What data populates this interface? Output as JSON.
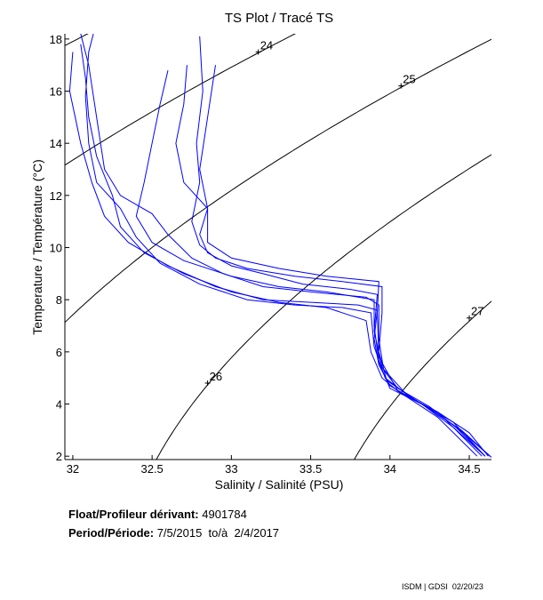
{
  "chart_data": {
    "type": "line",
    "title": "TS Plot / Tracé TS",
    "xlabel": "Salinity / Salinité (PSU)",
    "ylabel": "Temperature / Température (°C)",
    "xlim": [
      31.95,
      34.64
    ],
    "ylim": [
      1.87,
      18.2
    ],
    "xticks": [
      "32",
      "32.5",
      "33",
      "33.5",
      "34",
      "34.5"
    ],
    "xtick_values": [
      32,
      32.5,
      33,
      33.5,
      34,
      34.5
    ],
    "yticks": [
      "2",
      "4",
      "6",
      "8",
      "10",
      "12",
      "14",
      "16",
      "18"
    ],
    "ytick_values": [
      2,
      4,
      6,
      8,
      10,
      12,
      14,
      16,
      18
    ],
    "grid": false,
    "series_color": "#0000ff",
    "contour_color": "#000000",
    "density_contours": [
      {
        "sigma": 23,
        "label": ""
      },
      {
        "sigma": 24,
        "label": "24",
        "label_at": [
          33.17,
          17.5
        ]
      },
      {
        "sigma": 25,
        "label": "25",
        "label_at": [
          34.07,
          16.2
        ]
      },
      {
        "sigma": 26,
        "label": "26",
        "label_at": [
          32.85,
          4.8
        ]
      },
      {
        "sigma": 27,
        "label": "27",
        "label_at": [
          34.5,
          7.3
        ]
      }
    ],
    "profiles": [
      [
        [
          34.65,
          1.9
        ],
        [
          34.45,
          3.0
        ],
        [
          34.2,
          4.0
        ],
        [
          34.0,
          4.7
        ],
        [
          33.93,
          5.5
        ],
        [
          33.9,
          6.5
        ],
        [
          33.92,
          7.6
        ],
        [
          33.8,
          7.8
        ],
        [
          33.5,
          7.9
        ],
        [
          33.2,
          8.0
        ],
        [
          32.9,
          8.5
        ],
        [
          32.6,
          9.3
        ],
        [
          32.35,
          10.2
        ],
        [
          32.2,
          11.2
        ],
        [
          32.12,
          12.5
        ],
        [
          32.05,
          14
        ],
        [
          31.98,
          16
        ],
        [
          32.0,
          17.5
        ]
      ],
      [
        [
          34.6,
          2.0
        ],
        [
          34.4,
          3.2
        ],
        [
          34.15,
          4.2
        ],
        [
          33.98,
          4.9
        ],
        [
          33.93,
          6
        ],
        [
          33.95,
          7.5
        ],
        [
          33.95,
          8.5
        ],
        [
          33.7,
          8.7
        ],
        [
          33.4,
          8.9
        ],
        [
          33.1,
          9.2
        ],
        [
          32.9,
          9.6
        ],
        [
          32.8,
          10.1
        ],
        [
          32.75,
          11
        ],
        [
          32.8,
          12.5
        ],
        [
          32.78,
          14
        ],
        [
          32.82,
          16
        ],
        [
          32.8,
          18.1
        ]
      ],
      [
        [
          34.62,
          2.0
        ],
        [
          34.5,
          2.9
        ],
        [
          34.3,
          3.7
        ],
        [
          34.05,
          4.5
        ],
        [
          33.95,
          5
        ],
        [
          33.88,
          6
        ],
        [
          33.85,
          7.2
        ],
        [
          33.6,
          7.7
        ],
        [
          33.3,
          7.9
        ],
        [
          33.0,
          8.3
        ],
        [
          32.7,
          9.0
        ],
        [
          32.45,
          9.8
        ],
        [
          32.3,
          10.8
        ],
        [
          32.25,
          12
        ],
        [
          32.15,
          13.5
        ],
        [
          32.1,
          15
        ],
        [
          32.08,
          16.5
        ],
        [
          32.05,
          17.8
        ]
      ],
      [
        [
          34.58,
          2.0
        ],
        [
          34.35,
          3.4
        ],
        [
          34.1,
          4.4
        ],
        [
          33.95,
          5.4
        ],
        [
          33.9,
          6.8
        ],
        [
          33.92,
          8.2
        ],
        [
          33.75,
          8.4
        ],
        [
          33.45,
          8.6
        ],
        [
          33.2,
          9.0
        ],
        [
          33.0,
          9.3
        ],
        [
          32.85,
          9.8
        ],
        [
          32.8,
          10.5
        ],
        [
          32.85,
          11.5
        ],
        [
          32.7,
          12.5
        ],
        [
          32.65,
          14
        ],
        [
          32.7,
          15.5
        ],
        [
          32.72,
          17
        ]
      ],
      [
        [
          34.6,
          2.0
        ],
        [
          34.4,
          3.1
        ],
        [
          34.2,
          4.0
        ],
        [
          34.0,
          4.6
        ],
        [
          33.93,
          5.6
        ],
        [
          33.9,
          7.0
        ],
        [
          33.9,
          8.0
        ],
        [
          33.6,
          8.3
        ],
        [
          33.3,
          8.5
        ],
        [
          33.0,
          8.9
        ],
        [
          32.7,
          9.5
        ],
        [
          32.5,
          10.2
        ],
        [
          32.4,
          11.2
        ],
        [
          32.45,
          12.5
        ],
        [
          32.5,
          14
        ],
        [
          32.55,
          15.5
        ],
        [
          32.6,
          16.8
        ]
      ],
      [
        [
          34.63,
          2.0
        ],
        [
          34.48,
          2.8
        ],
        [
          34.25,
          3.9
        ],
        [
          34.05,
          4.6
        ],
        [
          33.96,
          5.3
        ],
        [
          33.93,
          6.5
        ],
        [
          33.93,
          7.8
        ],
        [
          33.85,
          8.1
        ],
        [
          33.5,
          8.3
        ],
        [
          33.2,
          8.5
        ],
        [
          32.95,
          9.0
        ],
        [
          32.75,
          9.6
        ],
        [
          32.6,
          10.5
        ],
        [
          32.5,
          11.3
        ],
        [
          32.3,
          12.0
        ],
        [
          32.2,
          13
        ],
        [
          32.15,
          15
        ],
        [
          32.1,
          17
        ],
        [
          32.05,
          18.2
        ]
      ],
      [
        [
          34.55,
          2.0
        ],
        [
          34.3,
          3.5
        ],
        [
          34.05,
          4.5
        ],
        [
          33.93,
          5.8
        ],
        [
          33.92,
          7.5
        ],
        [
          33.93,
          8.7
        ],
        [
          33.6,
          8.9
        ],
        [
          33.3,
          9.2
        ],
        [
          33.0,
          9.6
        ],
        [
          32.85,
          10.2
        ],
        [
          32.85,
          11.5
        ],
        [
          32.8,
          13
        ],
        [
          32.85,
          15
        ],
        [
          32.9,
          17
        ]
      ],
      [
        [
          34.6,
          2
        ],
        [
          34.4,
          3.3
        ],
        [
          34.12,
          4.3
        ],
        [
          33.97,
          5.0
        ],
        [
          33.9,
          6.2
        ],
        [
          33.88,
          7.5
        ],
        [
          33.7,
          7.7
        ],
        [
          33.4,
          7.8
        ],
        [
          33.1,
          8.0
        ],
        [
          32.8,
          8.6
        ],
        [
          32.55,
          9.4
        ],
        [
          32.4,
          10.4
        ],
        [
          32.3,
          11.5
        ],
        [
          32.15,
          12.5
        ],
        [
          32.1,
          14
        ],
        [
          32.08,
          15.8
        ],
        [
          32.1,
          17.5
        ],
        [
          32.13,
          18.2
        ]
      ]
    ]
  },
  "info": {
    "float_label": "Float/Profileur dérivant:",
    "float_value": "4901784",
    "period_label": "Period/Période:",
    "period_value": "7/5/2015  to/à  2/4/2017"
  },
  "footer": "ISDM | GDSI  02/20/23"
}
